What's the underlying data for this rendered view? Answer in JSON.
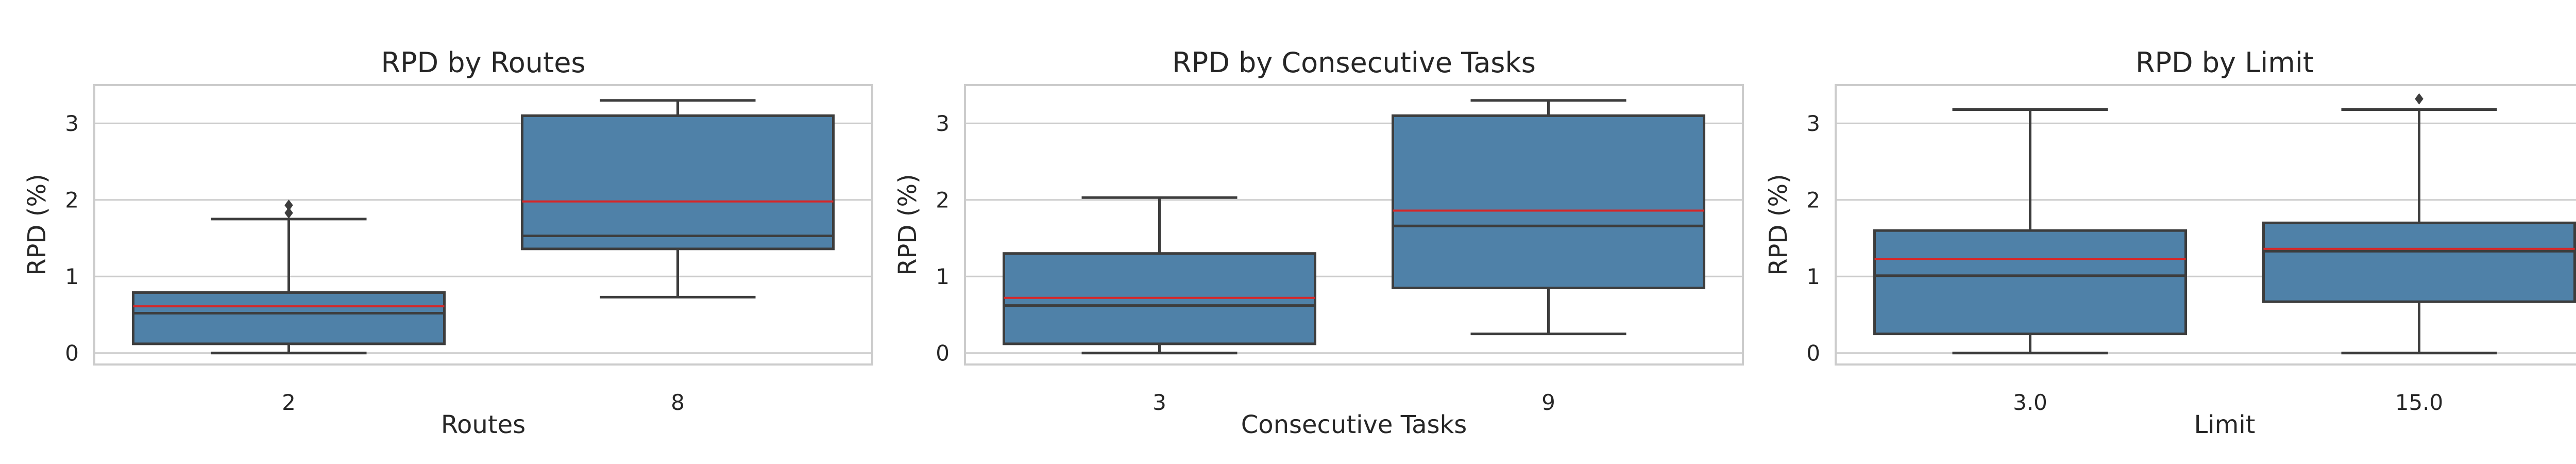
{
  "chart_data": [
    {
      "type": "box",
      "title": "RPD by Routes",
      "xlabel": "Routes",
      "ylabel": "RPD (%)",
      "ylim": [
        -0.15,
        3.5
      ],
      "yticks": [
        "0",
        "1",
        "2",
        "3"
      ],
      "grid": true,
      "categories": [
        "2",
        "8"
      ],
      "boxes": [
        {
          "whisker_low": 0.0,
          "q1": 0.12,
          "median": 0.52,
          "q3": 0.79,
          "whisker_high": 1.75,
          "mean": 0.61,
          "outliers": [
            1.83,
            1.93
          ]
        },
        {
          "whisker_low": 0.73,
          "q1": 1.36,
          "median": 1.53,
          "q3": 3.1,
          "whisker_high": 3.3,
          "mean": 1.98,
          "outliers": []
        }
      ]
    },
    {
      "type": "box",
      "title": "RPD by Consecutive Tasks",
      "xlabel": "Consecutive Tasks",
      "ylabel": "RPD (%)",
      "ylim": [
        -0.15,
        3.5
      ],
      "yticks": [
        "0",
        "1",
        "2",
        "3"
      ],
      "grid": true,
      "categories": [
        "3",
        "9"
      ],
      "boxes": [
        {
          "whisker_low": 0.0,
          "q1": 0.12,
          "median": 0.62,
          "q3": 1.3,
          "whisker_high": 2.03,
          "mean": 0.72,
          "outliers": []
        },
        {
          "whisker_low": 0.25,
          "q1": 0.85,
          "median": 1.66,
          "q3": 3.1,
          "whisker_high": 3.3,
          "mean": 1.86,
          "outliers": []
        }
      ]
    },
    {
      "type": "box",
      "title": "RPD by Limit",
      "xlabel": "Limit",
      "ylabel": "RPD (%)",
      "ylim": [
        -0.15,
        3.5
      ],
      "yticks": [
        "0",
        "1",
        "2",
        "3"
      ],
      "grid": true,
      "categories": [
        "3.0",
        "15.0"
      ],
      "boxes": [
        {
          "whisker_low": 0.0,
          "q1": 0.25,
          "median": 1.01,
          "q3": 1.6,
          "whisker_high": 3.18,
          "mean": 1.23,
          "outliers": []
        },
        {
          "whisker_low": 0.0,
          "q1": 0.67,
          "median": 1.33,
          "q3": 1.7,
          "whisker_high": 3.18,
          "mean": 1.36,
          "outliers": [
            3.32
          ]
        }
      ]
    }
  ],
  "colors": {
    "box_fill": "#4f81a8",
    "box_edge": "#3d3d3d",
    "mean_line": "#d62728",
    "grid": "#cccccc",
    "spine": "#cccccc",
    "text": "#262626"
  }
}
